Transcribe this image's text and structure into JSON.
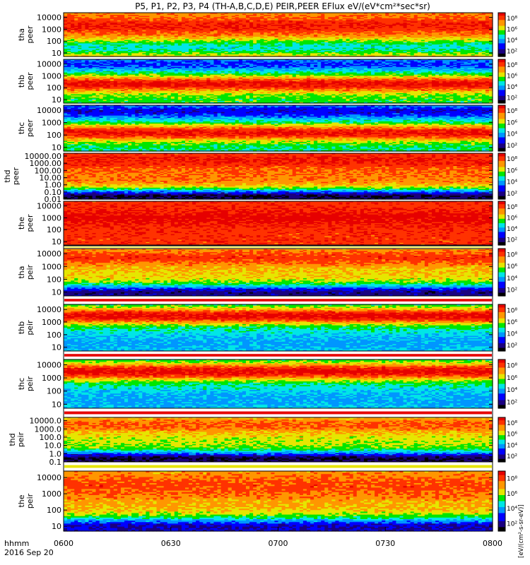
{
  "figure": {
    "title": "P5, P1, P2, P3, P4 (TH-A,B,C,D,E) PEIR,PEER EFlux eV/(eV*cm²*sec*sr)",
    "time_unit": "hhmm",
    "date": "2016 Sep 20",
    "colorbar_unit": "[eV/(cm²-s-sr-eV)]",
    "colorbar_ticks": [
      "10⁸",
      "10⁶",
      "10⁴",
      "10²"
    ]
  },
  "chart_data": {
    "type": "heatmap",
    "x_ticks": [
      "0600",
      "0630",
      "0700",
      "0730",
      "0800"
    ],
    "x_range": [
      "06:00",
      "08:00"
    ],
    "colormap": [
      "#000000",
      "#1a0080",
      "#0000ff",
      "#0096ff",
      "#00e6e6",
      "#00e600",
      "#e6e600",
      "#ff9600",
      "#ff3200",
      "#e60000"
    ],
    "colorbar_range": [
      1,
      100000000
    ],
    "panels": [
      {
        "probe": "tha",
        "instrument": "peer",
        "y_ticks": [
          "10000",
          "1000",
          "100",
          "10"
        ],
        "y_range": [
          5,
          25000
        ],
        "mean_level": 0.78,
        "bands": [
          {
            "energy": 30,
            "level": 0.45
          },
          {
            "energy": 2000,
            "level": 0.95
          }
        ]
      },
      {
        "probe": "thb",
        "instrument": "peer",
        "y_ticks": [
          "10000",
          "1000",
          "100",
          "10"
        ],
        "y_range": [
          5,
          25000
        ],
        "mean_level": 0.55,
        "bands": [
          {
            "energy": 200,
            "level": 0.98
          },
          {
            "energy": 10000,
            "level": 0.25
          }
        ]
      },
      {
        "probe": "thc",
        "instrument": "peer",
        "y_ticks": [
          "10000",
          "1000",
          "100",
          "10"
        ],
        "y_range": [
          5,
          25000
        ],
        "mean_level": 0.5,
        "bands": [
          {
            "energy": 150,
            "level": 0.97
          },
          {
            "energy": 8000,
            "level": 0.2
          }
        ]
      },
      {
        "probe": "thd",
        "instrument": "peer",
        "y_ticks": [
          "10000.00",
          "1000.00",
          "100.00",
          "10.00",
          "1.00",
          "0.10",
          "0.01"
        ],
        "y_range": [
          0.01,
          25000
        ],
        "mean_level": 0.82,
        "bands": [
          {
            "energy": 0.02,
            "level": 0.05
          },
          {
            "energy": 3000,
            "level": 0.95
          }
        ]
      },
      {
        "probe": "the",
        "instrument": "peer",
        "y_ticks": [
          "10000",
          "1000",
          "100",
          "10"
        ],
        "y_range": [
          5,
          25000
        ],
        "mean_level": 0.9,
        "bands": [
          {
            "energy": 1000,
            "level": 1.0
          }
        ]
      },
      {
        "probe": "tha",
        "instrument": "peir",
        "y_ticks": [
          "10000",
          "1000",
          "100",
          "10"
        ],
        "y_range": [
          5,
          25000
        ],
        "mean_level": 0.7,
        "bands": [
          {
            "energy": 8,
            "level": 0.1
          },
          {
            "energy": 5000,
            "level": 0.9
          }
        ]
      },
      {
        "probe": "thb",
        "instrument": "peir",
        "y_ticks": [
          "10000",
          "1000",
          "100",
          "10"
        ],
        "y_range": [
          5,
          25000
        ],
        "mean_level": 0.45,
        "bands": [
          {
            "energy": 3000,
            "level": 1.0
          },
          {
            "energy": 20,
            "level": 0.35
          }
        ]
      },
      {
        "probe": "thc",
        "instrument": "peir",
        "y_ticks": [
          "10000",
          "1000",
          "100",
          "10"
        ],
        "y_range": [
          5,
          25000
        ],
        "mean_level": 0.45,
        "bands": [
          {
            "energy": 3000,
            "level": 1.0
          },
          {
            "energy": 20,
            "level": 0.35
          }
        ]
      },
      {
        "probe": "thd",
        "instrument": "peir",
        "y_ticks": [
          "10000.0",
          "1000.0",
          "100.0",
          "10.0",
          "1.0",
          "0.1"
        ],
        "y_range": [
          0.1,
          25000
        ],
        "mean_level": 0.65,
        "bands": [
          {
            "energy": 0.2,
            "level": 0.05
          },
          {
            "energy": 3000,
            "level": 0.85
          }
        ]
      },
      {
        "probe": "the",
        "instrument": "peir",
        "y_ticks": [
          "10000",
          "1000",
          "100",
          "10"
        ],
        "y_range": [
          5,
          25000
        ],
        "mean_level": 0.75,
        "bands": [
          {
            "energy": 8,
            "level": 0.15
          },
          {
            "energy": 3000,
            "level": 0.88
          }
        ]
      }
    ]
  }
}
